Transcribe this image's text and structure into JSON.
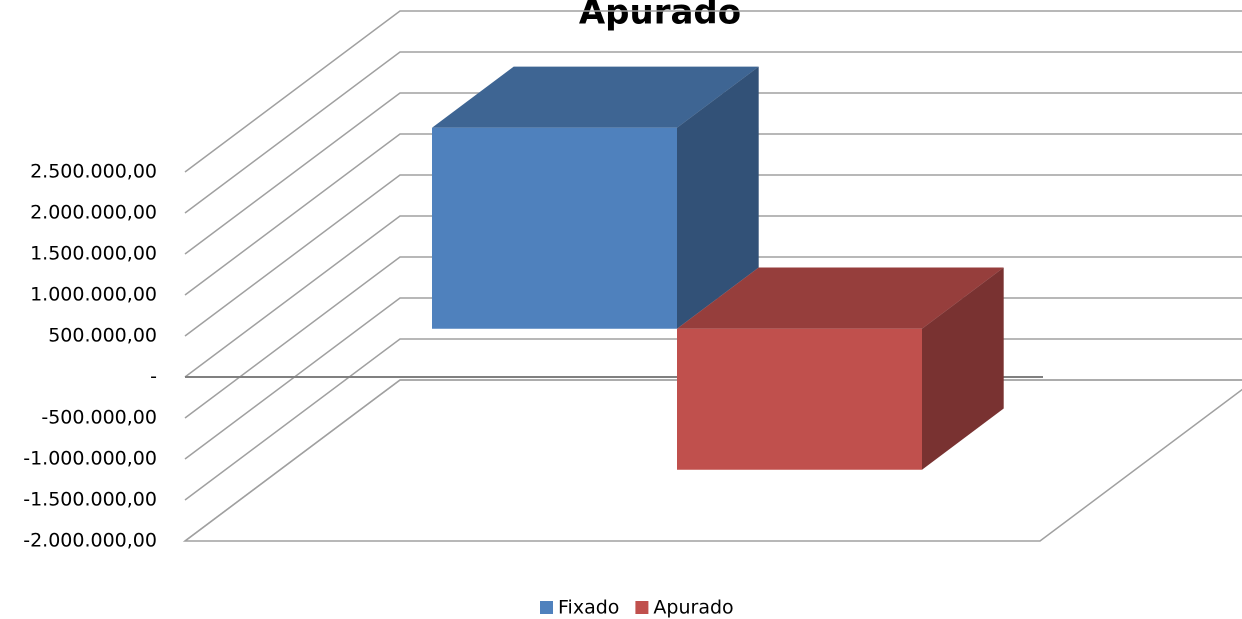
{
  "chart_data": {
    "type": "bar3d",
    "title": "Apurado",
    "categories": [
      null
    ],
    "series": [
      {
        "name": "Fixado",
        "color": "#4f81bd",
        "values": [
          2450000
        ]
      },
      {
        "name": "Apurado",
        "color": "#c0504d",
        "values": [
          -1720000
        ]
      }
    ],
    "ylim": [
      -2000000,
      2500000
    ],
    "yticks": [
      {
        "value": -2000000,
        "label": "-2.000.000,00"
      },
      {
        "value": -1500000,
        "label": "-1.500.000,00"
      },
      {
        "value": -1000000,
        "label": "-1.000.000,00"
      },
      {
        "value": -500000,
        "label": "-500.000,00"
      },
      {
        "value": 0,
        "label": "-"
      },
      {
        "value": 500000,
        "label": "500.000,00"
      },
      {
        "value": 1000000,
        "label": "1.000.000,00"
      },
      {
        "value": 1500000,
        "label": "1.500.000,00"
      },
      {
        "value": 2000000,
        "label": "2.000.000,00"
      },
      {
        "value": 2500000,
        "label": "2.500.000,00"
      }
    ],
    "grid": true,
    "legend": "bottom"
  }
}
